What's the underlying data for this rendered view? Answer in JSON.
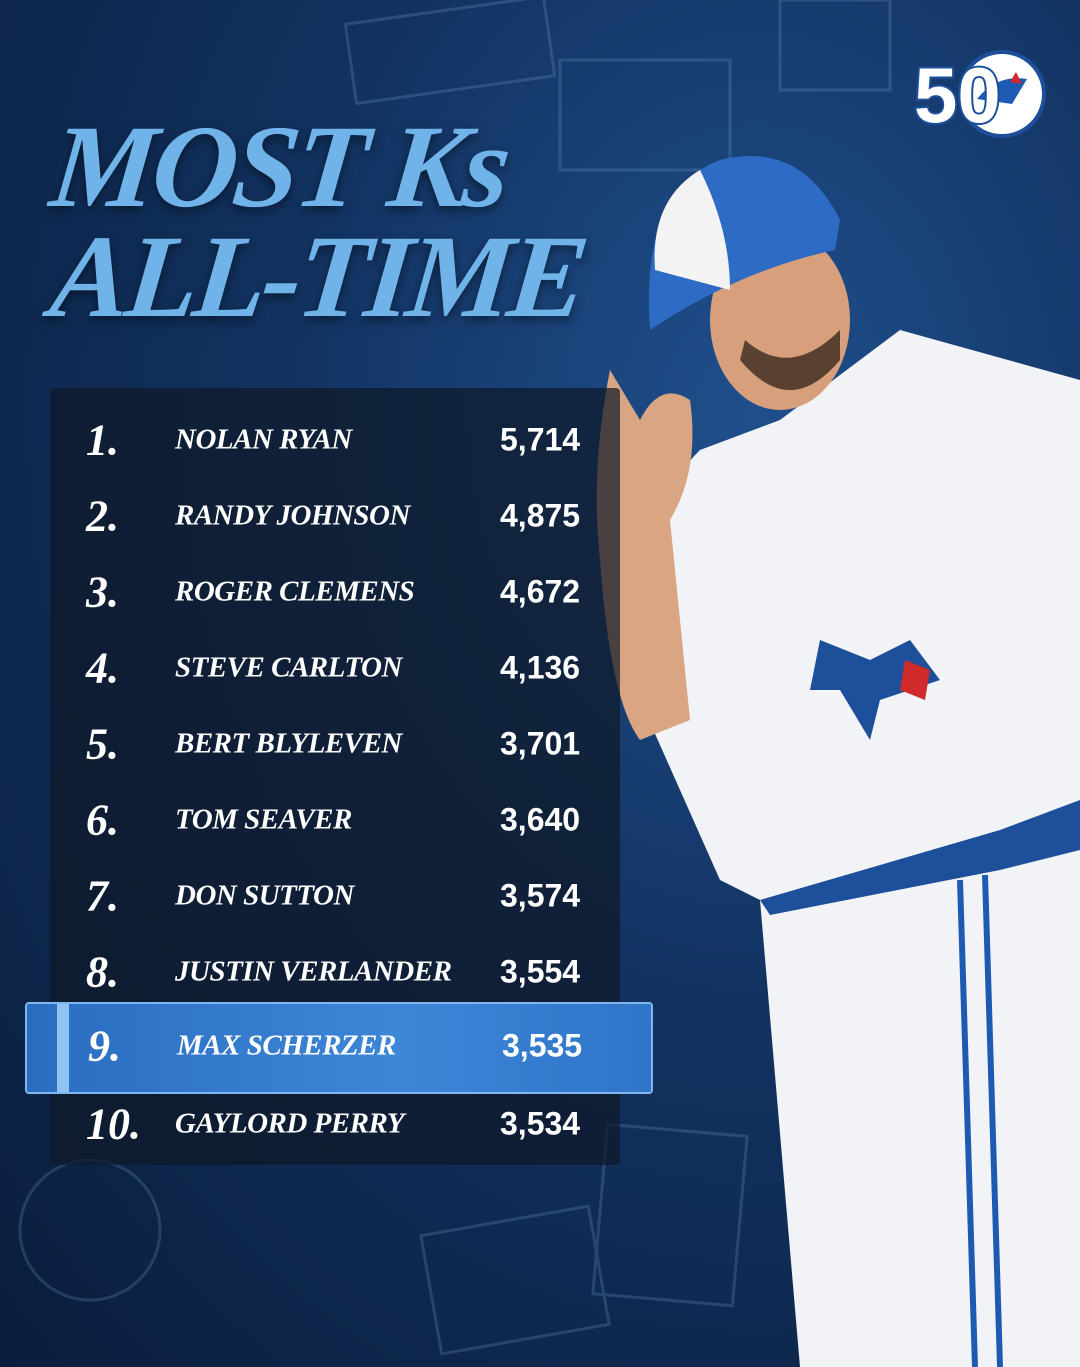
{
  "title": {
    "line1": "MOST Ks",
    "line2": "ALL-TIME"
  },
  "logo": {
    "text": "50"
  },
  "table": {
    "rows": [
      [
        "1.",
        "NOLAN RYAN",
        "5,714"
      ],
      [
        "2.",
        "RANDY JOHNSON",
        "4,875"
      ],
      [
        "3.",
        "ROGER CLEMENS",
        "4,672"
      ],
      [
        "4.",
        "STEVE CARLTON",
        "4,136"
      ],
      [
        "5.",
        "BERT BLYLEVEN",
        "3,701"
      ],
      [
        "6.",
        "TOM SEAVER",
        "3,640"
      ],
      [
        "7.",
        "DON SUTTON",
        "3,574"
      ],
      [
        "8.",
        "JUSTIN VERLANDER",
        "3,554"
      ],
      [
        "9.",
        "MAX SCHERZER",
        "3,535"
      ],
      [
        "10.",
        "GAYLORD PERRY",
        "3,534"
      ]
    ]
  }
}
